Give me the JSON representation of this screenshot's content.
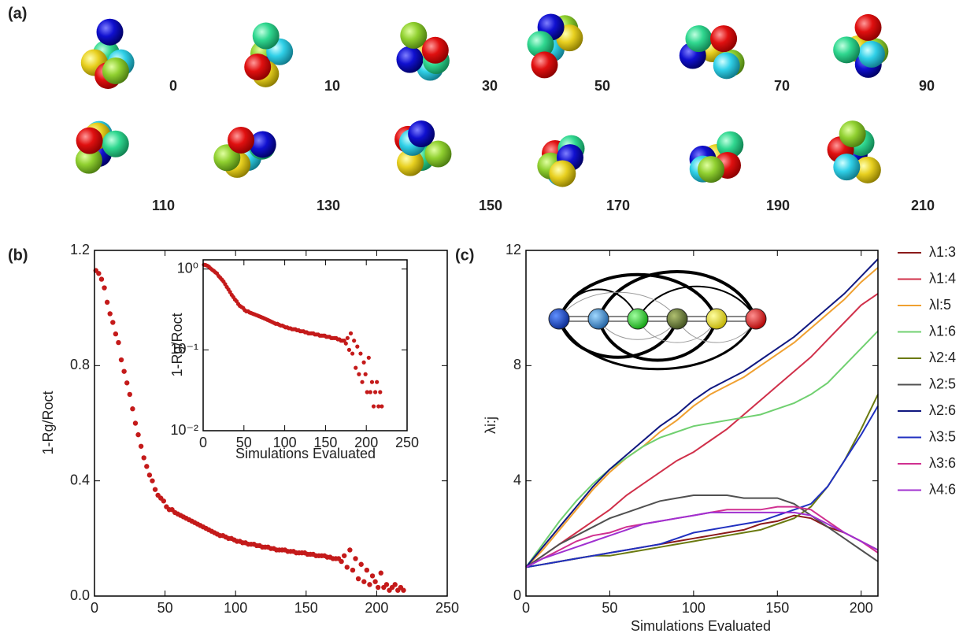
{
  "snapshots": {
    "panel_label": "(a)",
    "labels": [
      0,
      10,
      30,
      50,
      70,
      90,
      110,
      130,
      150,
      170,
      190,
      210
    ]
  },
  "chart_data": [
    {
      "type": "scatter",
      "panel_label": "(b)",
      "y_label": "1-Rg/Roct",
      "color": "#c41a1a",
      "x": [
        1,
        3,
        5,
        7,
        9,
        11,
        13,
        15,
        17,
        19,
        21,
        23,
        25,
        27,
        29,
        31,
        33,
        35,
        37,
        39,
        41,
        43,
        45,
        47,
        49,
        51,
        53,
        55,
        57,
        59,
        61,
        63,
        65,
        67,
        69,
        71,
        73,
        75,
        77,
        79,
        81,
        83,
        85,
        87,
        89,
        91,
        93,
        95,
        97,
        99,
        101,
        103,
        105,
        107,
        109,
        111,
        113,
        115,
        117,
        119,
        121,
        123,
        125,
        127,
        129,
        131,
        133,
        135,
        137,
        139,
        141,
        143,
        145,
        147,
        149,
        151,
        153,
        155,
        157,
        159,
        161,
        163,
        165,
        167,
        169,
        171,
        173,
        175,
        177,
        179,
        181,
        183,
        185,
        187,
        189,
        191,
        193,
        195,
        197,
        199,
        201,
        203,
        205,
        207,
        209,
        211,
        213,
        215,
        217,
        219
      ],
      "values": [
        1.13,
        1.12,
        1.1,
        1.07,
        1.02,
        0.98,
        0.95,
        0.91,
        0.88,
        0.82,
        0.78,
        0.74,
        0.7,
        0.65,
        0.6,
        0.56,
        0.52,
        0.48,
        0.45,
        0.42,
        0.4,
        0.37,
        0.35,
        0.34,
        0.33,
        0.31,
        0.3,
        0.3,
        0.29,
        0.285,
        0.28,
        0.275,
        0.27,
        0.265,
        0.26,
        0.255,
        0.25,
        0.245,
        0.24,
        0.235,
        0.23,
        0.225,
        0.22,
        0.215,
        0.21,
        0.21,
        0.205,
        0.2,
        0.2,
        0.195,
        0.19,
        0.19,
        0.185,
        0.185,
        0.18,
        0.18,
        0.18,
        0.175,
        0.175,
        0.17,
        0.17,
        0.17,
        0.165,
        0.165,
        0.16,
        0.16,
        0.16,
        0.16,
        0.155,
        0.155,
        0.155,
        0.15,
        0.15,
        0.15,
        0.15,
        0.145,
        0.145,
        0.145,
        0.14,
        0.14,
        0.14,
        0.14,
        0.135,
        0.135,
        0.13,
        0.13,
        0.13,
        0.12,
        0.14,
        0.1,
        0.16,
        0.09,
        0.13,
        0.06,
        0.11,
        0.05,
        0.09,
        0.04,
        0.07,
        0.05,
        0.03,
        0.08,
        0.03,
        0.04,
        0.02,
        0.03,
        0.04,
        0.02,
        0.03,
        0.02
      ],
      "xlim": [
        0,
        250
      ],
      "xticks": [
        0,
        50,
        100,
        150,
        200,
        250
      ],
      "ylim": [
        0,
        1.2
      ],
      "yticks": [
        {
          "value": 0,
          "label": "0.0"
        },
        0.4,
        0.8,
        1.2
      ]
    },
    {
      "type": "scatter",
      "log_y": true,
      "x_label": "Simulations Evaluated",
      "y_label": "1-Rg/Roct",
      "xlim": [
        0,
        250
      ],
      "xticks": [
        0,
        50,
        100,
        150,
        200,
        250
      ],
      "ylim": [
        0.01,
        1.3
      ],
      "yticks": [
        {
          "value": 1,
          "label": "10⁰"
        },
        {
          "value": 0.1,
          "label": "10⁻¹"
        },
        {
          "value": 0.01,
          "label": "10⁻²"
        }
      ]
    },
    {
      "type": "line",
      "panel_label": "(c)",
      "x_label": "Simulations Evaluated",
      "y_label": "λi:j",
      "legend": "right",
      "x": [
        0,
        10,
        20,
        30,
        40,
        50,
        60,
        70,
        80,
        90,
        100,
        110,
        120,
        130,
        140,
        150,
        160,
        170,
        180,
        190,
        200,
        210
      ],
      "xlim": [
        0,
        210
      ],
      "xticks": [
        0,
        50,
        100,
        150,
        200
      ],
      "ylim": [
        0,
        12
      ],
      "yticks": [
        0,
        4,
        8,
        12
      ],
      "series": [
        {
          "name": "λ1:3",
          "color": "#8b1a1a",
          "values": [
            1.0,
            1.1,
            1.2,
            1.3,
            1.4,
            1.5,
            1.6,
            1.7,
            1.8,
            1.9,
            2.0,
            2.1,
            2.2,
            2.3,
            2.5,
            2.6,
            2.8,
            2.7,
            2.4,
            2.2,
            1.9,
            1.6
          ]
        },
        {
          "name": "λ1:4",
          "color": "#d0304a",
          "values": [
            1.0,
            1.4,
            1.8,
            2.2,
            2.6,
            3.0,
            3.5,
            3.9,
            4.3,
            4.7,
            5.0,
            5.4,
            5.8,
            6.3,
            6.8,
            7.3,
            7.8,
            8.3,
            8.9,
            9.5,
            10.1,
            10.5
          ]
        },
        {
          "name": "λl:5",
          "color": "#f0a030",
          "values": [
            1.0,
            1.6,
            2.3,
            3.0,
            3.7,
            4.3,
            4.8,
            5.2,
            5.7,
            6.1,
            6.6,
            7.0,
            7.3,
            7.6,
            8.0,
            8.4,
            8.8,
            9.3,
            9.8,
            10.3,
            10.9,
            11.4
          ]
        },
        {
          "name": "λ1:6",
          "color": "#70d070",
          "values": [
            1.0,
            1.8,
            2.6,
            3.3,
            3.9,
            4.4,
            4.8,
            5.2,
            5.5,
            5.7,
            5.9,
            6.0,
            6.1,
            6.2,
            6.3,
            6.5,
            6.7,
            7.0,
            7.4,
            8.0,
            8.6,
            9.2
          ]
        },
        {
          "name": "λ2:4",
          "color": "#6b7a10",
          "values": [
            1.0,
            1.1,
            1.2,
            1.3,
            1.4,
            1.4,
            1.5,
            1.6,
            1.7,
            1.8,
            1.9,
            2.0,
            2.1,
            2.2,
            2.3,
            2.5,
            2.7,
            3.1,
            3.8,
            4.7,
            5.8,
            7.0
          ]
        },
        {
          "name": "λ2:5",
          "color": "#505050",
          "values": [
            1.0,
            1.4,
            1.8,
            2.1,
            2.4,
            2.7,
            2.9,
            3.1,
            3.3,
            3.4,
            3.5,
            3.5,
            3.5,
            3.4,
            3.4,
            3.4,
            3.2,
            2.8,
            2.4,
            2.0,
            1.6,
            1.2
          ]
        },
        {
          "name": "λ2:6",
          "color": "#101880",
          "values": [
            1.0,
            1.7,
            2.4,
            3.1,
            3.8,
            4.4,
            4.9,
            5.4,
            5.9,
            6.3,
            6.8,
            7.2,
            7.5,
            7.8,
            8.2,
            8.6,
            9.0,
            9.5,
            10.0,
            10.5,
            11.1,
            11.7
          ]
        },
        {
          "name": "λ3:5",
          "color": "#2030c0",
          "values": [
            1.0,
            1.1,
            1.2,
            1.3,
            1.4,
            1.5,
            1.6,
            1.7,
            1.8,
            2.0,
            2.2,
            2.3,
            2.4,
            2.5,
            2.6,
            2.8,
            3.0,
            3.2,
            3.8,
            4.7,
            5.6,
            6.6
          ]
        },
        {
          "name": "λ3:6",
          "color": "#d03090",
          "values": [
            1.0,
            1.3,
            1.6,
            1.9,
            2.1,
            2.2,
            2.4,
            2.5,
            2.6,
            2.7,
            2.8,
            2.9,
            3.0,
            3.0,
            3.0,
            3.1,
            3.1,
            3.0,
            2.6,
            2.2,
            1.9,
            1.5
          ]
        },
        {
          "name": "λ4:6",
          "color": "#a030d0",
          "values": [
            1.0,
            1.3,
            1.5,
            1.7,
            1.9,
            2.1,
            2.3,
            2.5,
            2.6,
            2.7,
            2.8,
            2.9,
            2.9,
            2.9,
            2.9,
            2.9,
            2.9,
            2.8,
            2.5,
            2.2,
            1.9,
            1.6
          ]
        }
      ]
    }
  ]
}
